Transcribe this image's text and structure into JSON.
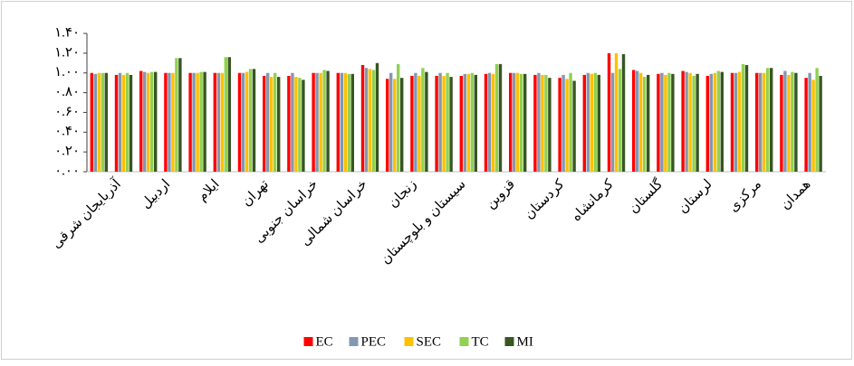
{
  "chart_data": {
    "type": "bar",
    "categories": [
      "آذربایجان شرقی",
      null,
      "اردبیل",
      null,
      "ایلام",
      null,
      "تهران",
      null,
      "خراسان جنوبی",
      null,
      "خراسان شمالی",
      null,
      "زنجان",
      null,
      "سیستان و بلوچستان",
      null,
      "قزوین",
      null,
      "کردستان",
      null,
      "کرمانشاه",
      null,
      "گلستان",
      null,
      "لرستان",
      null,
      "مرکزی",
      null,
      "همدان",
      null
    ],
    "series": [
      {
        "name": "EC",
        "color": "#ff0000",
        "values": [
          1.0,
          0.98,
          1.02,
          1.0,
          1.0,
          1.0,
          1.0,
          0.97,
          0.97,
          1.0,
          1.0,
          1.08,
          0.94,
          0.97,
          0.97,
          0.97,
          0.99,
          1.0,
          0.98,
          0.95,
          0.98,
          1.2,
          1.03,
          0.99,
          1.02,
          0.97,
          1.0,
          1.0,
          0.98,
          0.95
        ]
      },
      {
        "name": "PEC",
        "color": "#8497b0",
        "values": [
          0.99,
          1.0,
          1.01,
          1.0,
          1.0,
          1.0,
          1.0,
          1.0,
          1.0,
          1.0,
          1.0,
          1.05,
          1.0,
          1.0,
          1.0,
          0.99,
          1.0,
          1.0,
          1.0,
          0.98,
          1.0,
          1.0,
          1.02,
          1.0,
          1.01,
          0.99,
          1.0,
          1.0,
          1.02,
          1.0
        ]
      },
      {
        "name": "SEC",
        "color": "#ffc000",
        "values": [
          1.0,
          0.98,
          1.0,
          1.0,
          1.0,
          1.0,
          1.01,
          0.96,
          0.96,
          1.0,
          1.0,
          1.04,
          0.94,
          0.97,
          0.97,
          0.99,
          0.99,
          1.0,
          0.98,
          0.94,
          0.99,
          1.2,
          1.0,
          0.98,
          1.0,
          1.0,
          1.01,
          1.0,
          0.98,
          0.93
        ]
      },
      {
        "name": "TC",
        "color": "#92d050",
        "values": [
          1.0,
          1.0,
          1.01,
          1.15,
          1.01,
          1.16,
          1.04,
          1.0,
          0.95,
          1.03,
          0.99,
          1.03,
          1.09,
          1.05,
          1.0,
          1.0,
          1.09,
          0.99,
          0.98,
          1.0,
          1.0,
          1.04,
          0.96,
          1.0,
          0.97,
          1.02,
          1.09,
          1.05,
          1.01,
          1.05
        ]
      },
      {
        "name": "MI",
        "color": "#375623",
        "values": [
          1.0,
          0.98,
          1.01,
          1.15,
          1.01,
          1.16,
          1.04,
          0.96,
          0.93,
          1.02,
          0.99,
          1.1,
          0.95,
          1.01,
          0.96,
          0.98,
          1.09,
          0.99,
          0.95,
          0.92,
          0.98,
          1.19,
          0.98,
          0.99,
          0.99,
          1.01,
          1.08,
          1.05,
          1.0,
          0.97
        ]
      }
    ],
    "ylim": [
      0,
      1.4
    ],
    "yticks": [
      {
        "value": 0,
        "label": "۰.۰۰"
      },
      {
        "value": 0.2,
        "label": "۰.۲۰"
      },
      {
        "value": 0.4,
        "label": "۰.۴۰"
      },
      {
        "value": 0.6,
        "label": "۰.۶۰"
      },
      {
        "value": 0.8,
        "label": "۰.۸۰"
      },
      {
        "value": 1.0,
        "label": "۱.۰۰"
      },
      {
        "value": 1.2,
        "label": "۱.۲۰"
      },
      {
        "value": 1.4,
        "label": "۱.۴۰"
      }
    ],
    "legend": "bottom"
  }
}
